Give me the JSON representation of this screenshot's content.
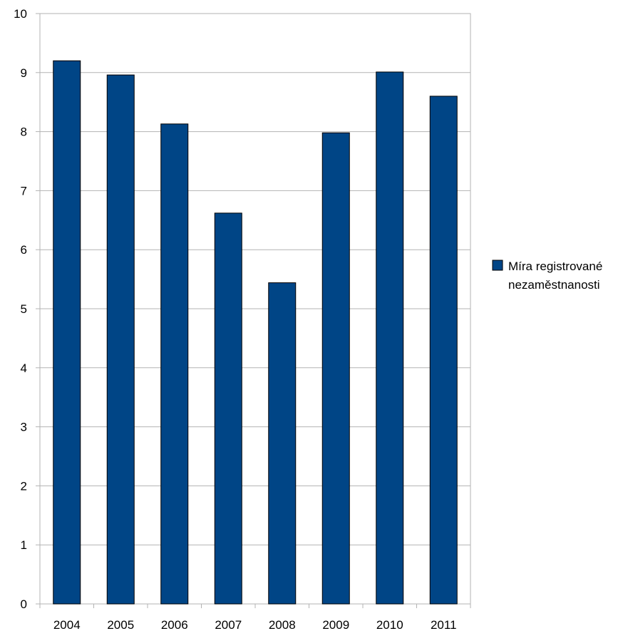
{
  "chart_data": {
    "type": "bar",
    "categories": [
      "2004",
      "2005",
      "2006",
      "2007",
      "2008",
      "2009",
      "2010",
      "2011"
    ],
    "series": [
      {
        "name": "Míra registrované nezaměstnanosti",
        "values": [
          9.2,
          8.96,
          8.13,
          6.62,
          5.44,
          7.98,
          9.01,
          8.6
        ],
        "color": "#004586"
      }
    ],
    "ylim": [
      0,
      10
    ],
    "yticks": [
      "0",
      "1",
      "2",
      "3",
      "4",
      "5",
      "6",
      "7",
      "8",
      "9",
      "10"
    ],
    "grid": true,
    "legend_position": "right",
    "legend_lines": [
      "Míra registrované",
      "nezaměstnanosti"
    ],
    "title": "",
    "xlabel": "",
    "ylabel": ""
  }
}
